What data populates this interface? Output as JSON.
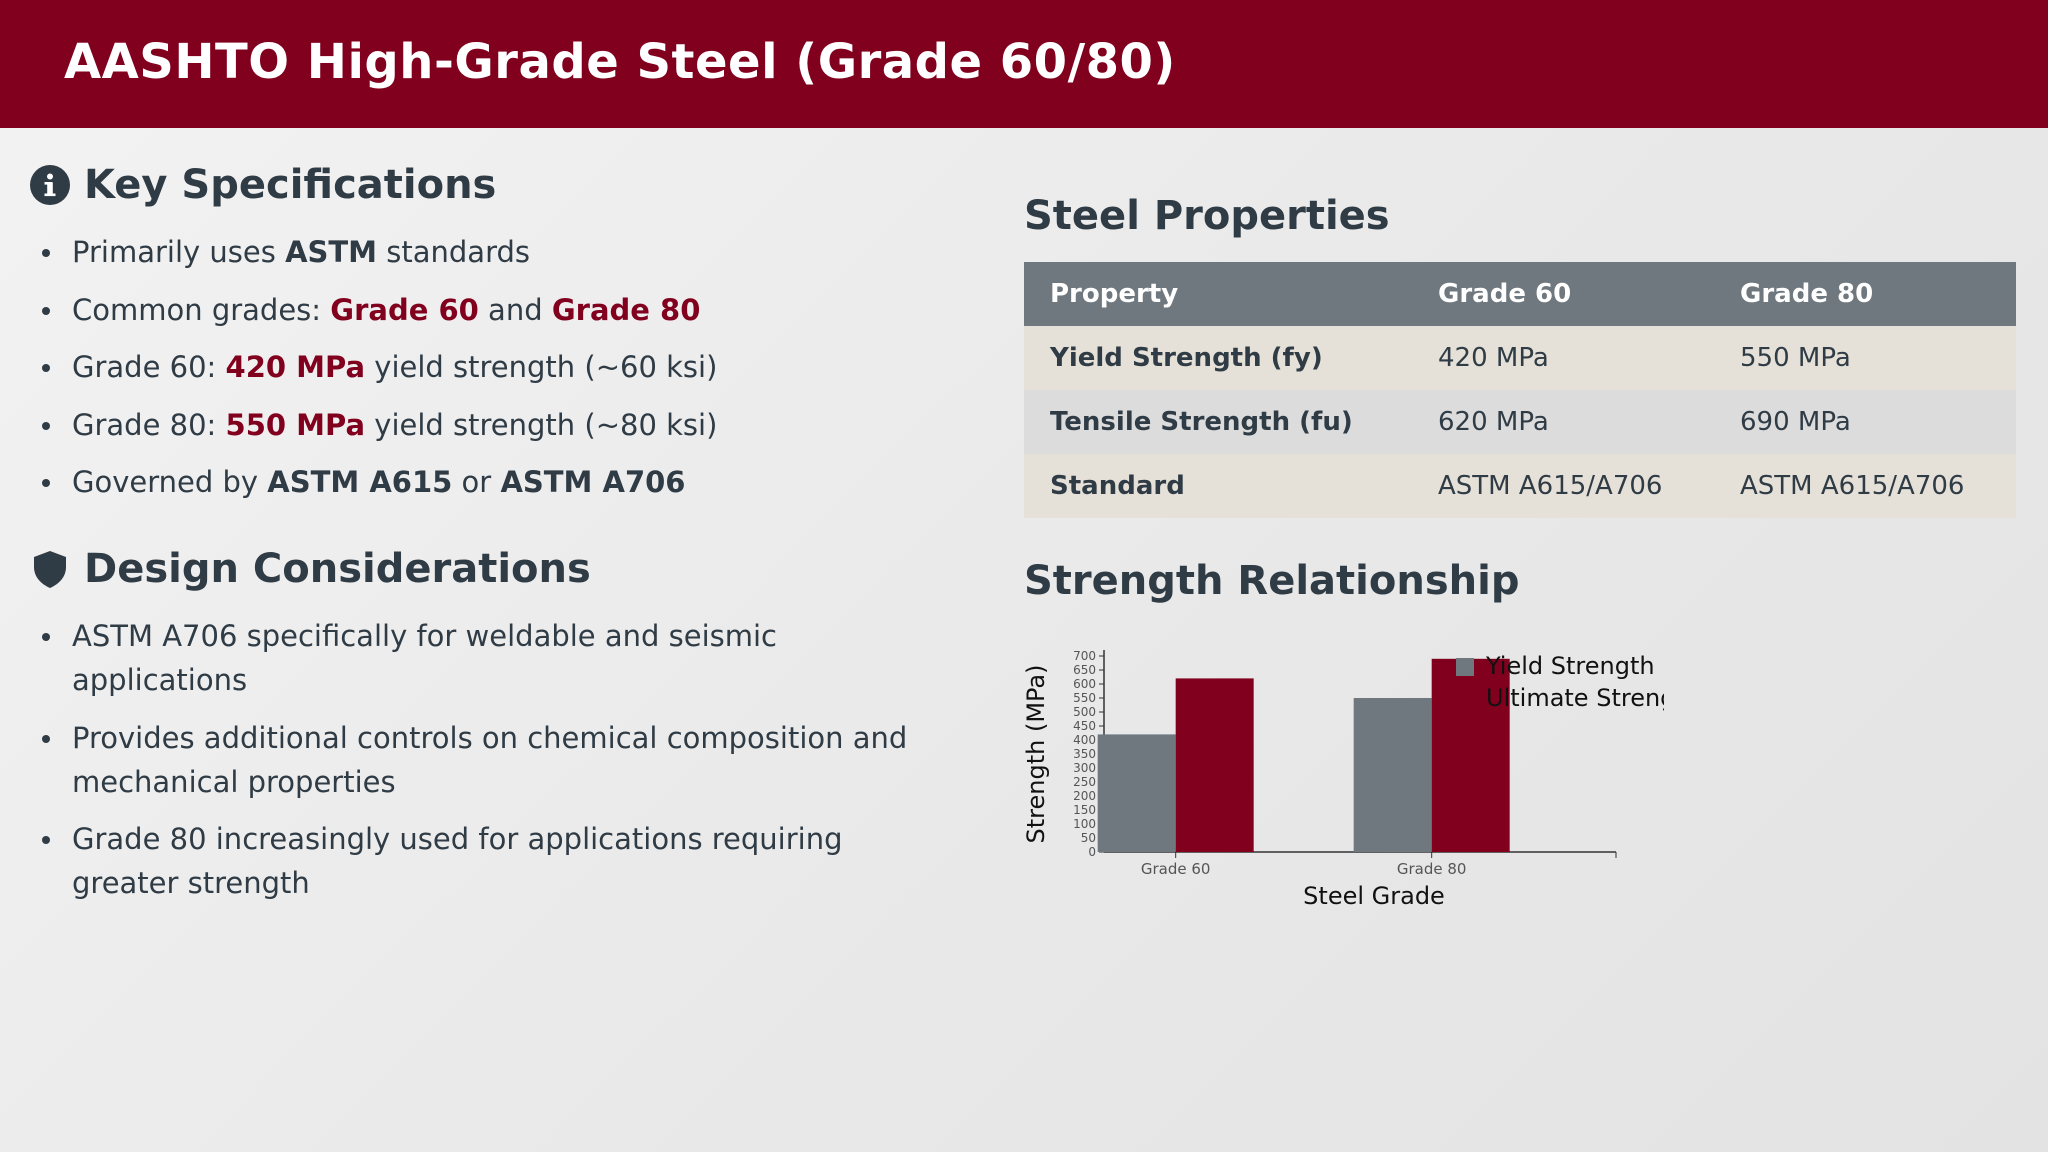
{
  "header": {
    "title": "AASHTO High-Grade Steel (Grade 60/80)"
  },
  "key_specs": {
    "title": "Key Specifications",
    "icon": "info-icon",
    "items": [
      {
        "pre": "Primarily uses ",
        "em1": "ASTM",
        "mid": " standards"
      },
      {
        "pre": "Common grades: ",
        "em1": "Grade 60",
        "mid": " and ",
        "em2": "Grade 80"
      },
      {
        "pre": "Grade 60: ",
        "em1": "420 MPa",
        "mid": " yield strength (~60 ksi)"
      },
      {
        "pre": "Grade 80: ",
        "em1": "550 MPa",
        "mid": " yield strength (~80 ksi)"
      },
      {
        "pre": "Governed by ",
        "em1": "ASTM A615",
        "mid": " or ",
        "em2": "ASTM A706"
      }
    ]
  },
  "design": {
    "title": "Design Considerations",
    "icon": "shield-icon",
    "items": [
      "ASTM A706 specifically for weldable and seismic applications",
      "Provides additional controls on chemical composition and mechanical properties",
      "Grade 80 increasingly used for applications requiring greater strength"
    ]
  },
  "properties": {
    "title": "Steel Properties",
    "headers": [
      "Property",
      "Grade 60",
      "Grade 80"
    ],
    "rows": [
      [
        "Yield Strength (fy)",
        "420 MPa",
        "550 MPa"
      ],
      [
        "Tensile Strength (fu)",
        "620 MPa",
        "690 MPa"
      ],
      [
        "Standard",
        "ASTM A615/A706",
        "ASTM A615/A706"
      ]
    ]
  },
  "strength": {
    "title": "Strength Relationship"
  },
  "chart_data": {
    "type": "bar",
    "categories": [
      "Grade 60",
      "Grade 80"
    ],
    "series": [
      {
        "name": "Yield Strength",
        "values": [
          420,
          550
        ],
        "color": "#6f787f"
      },
      {
        "name": "Ultimate Strength",
        "values": [
          620,
          690
        ],
        "color": "#81001e"
      }
    ],
    "title": "",
    "xlabel": "Steel Grade",
    "ylabel": "Strength (MPa)",
    "ylim": [
      0,
      700
    ],
    "yticks": [
      0,
      50,
      100,
      150,
      200,
      250,
      300,
      350,
      400,
      450,
      500,
      550,
      600,
      650,
      700
    ],
    "grid": false,
    "legend": "top-right"
  },
  "colors": {
    "accent": "#81001e",
    "text": "#2f3b45",
    "table_header": "#6f787f"
  }
}
